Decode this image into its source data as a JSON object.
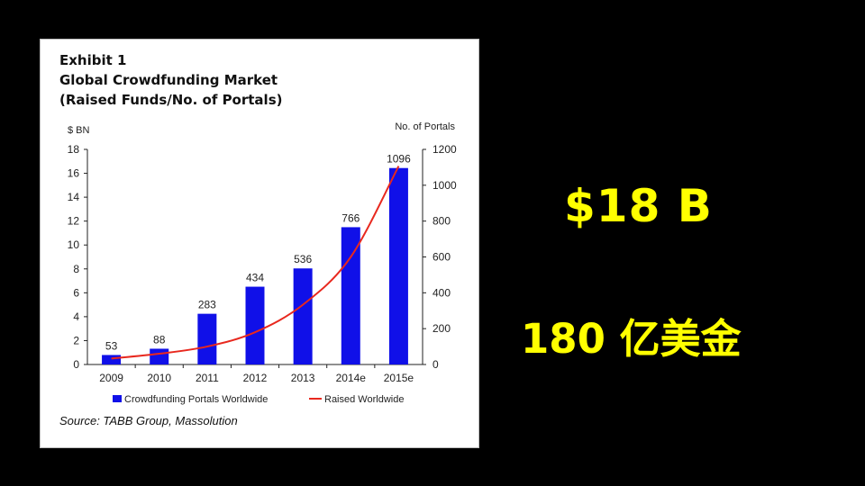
{
  "exhibit": {
    "title_line1": "Exhibit 1",
    "title_line2": "Global Crowdfunding Market",
    "title_line3": "(Raised Funds/No. of Portals)",
    "source": "Source: TABB Group, Massolution"
  },
  "headline": {
    "usd": "$18 B",
    "cny": "180 亿美金"
  },
  "chart_data": {
    "type": "bar",
    "categories": [
      "2009",
      "2010",
      "2011",
      "2012",
      "2013",
      "2014e",
      "2015e"
    ],
    "left_axis": {
      "label": "$ BN",
      "min": 0,
      "max": 18,
      "ticks": [
        0,
        2,
        4,
        6,
        8,
        10,
        12,
        14,
        16,
        18
      ]
    },
    "right_axis": {
      "label": "No. of Portals",
      "min": 0,
      "max": 1200,
      "ticks": [
        0,
        200,
        400,
        600,
        800,
        1000,
        1200
      ]
    },
    "series": [
      {
        "name": "Crowdfunding Portals Worldwide",
        "kind": "bar",
        "axis": "right",
        "color": "#1010e8",
        "values": [
          53,
          88,
          283,
          434,
          536,
          766,
          1096
        ],
        "labels": [
          "53",
          "88",
          "283",
          "434",
          "536",
          "766",
          "1096"
        ]
      },
      {
        "name": "Raised Worldwide",
        "kind": "line",
        "axis": "left",
        "color": "#e8281e",
        "values": [
          0.5,
          0.9,
          1.5,
          2.7,
          5.0,
          9.0,
          16.6
        ]
      }
    ],
    "legend": "bottom",
    "grid": false
  }
}
